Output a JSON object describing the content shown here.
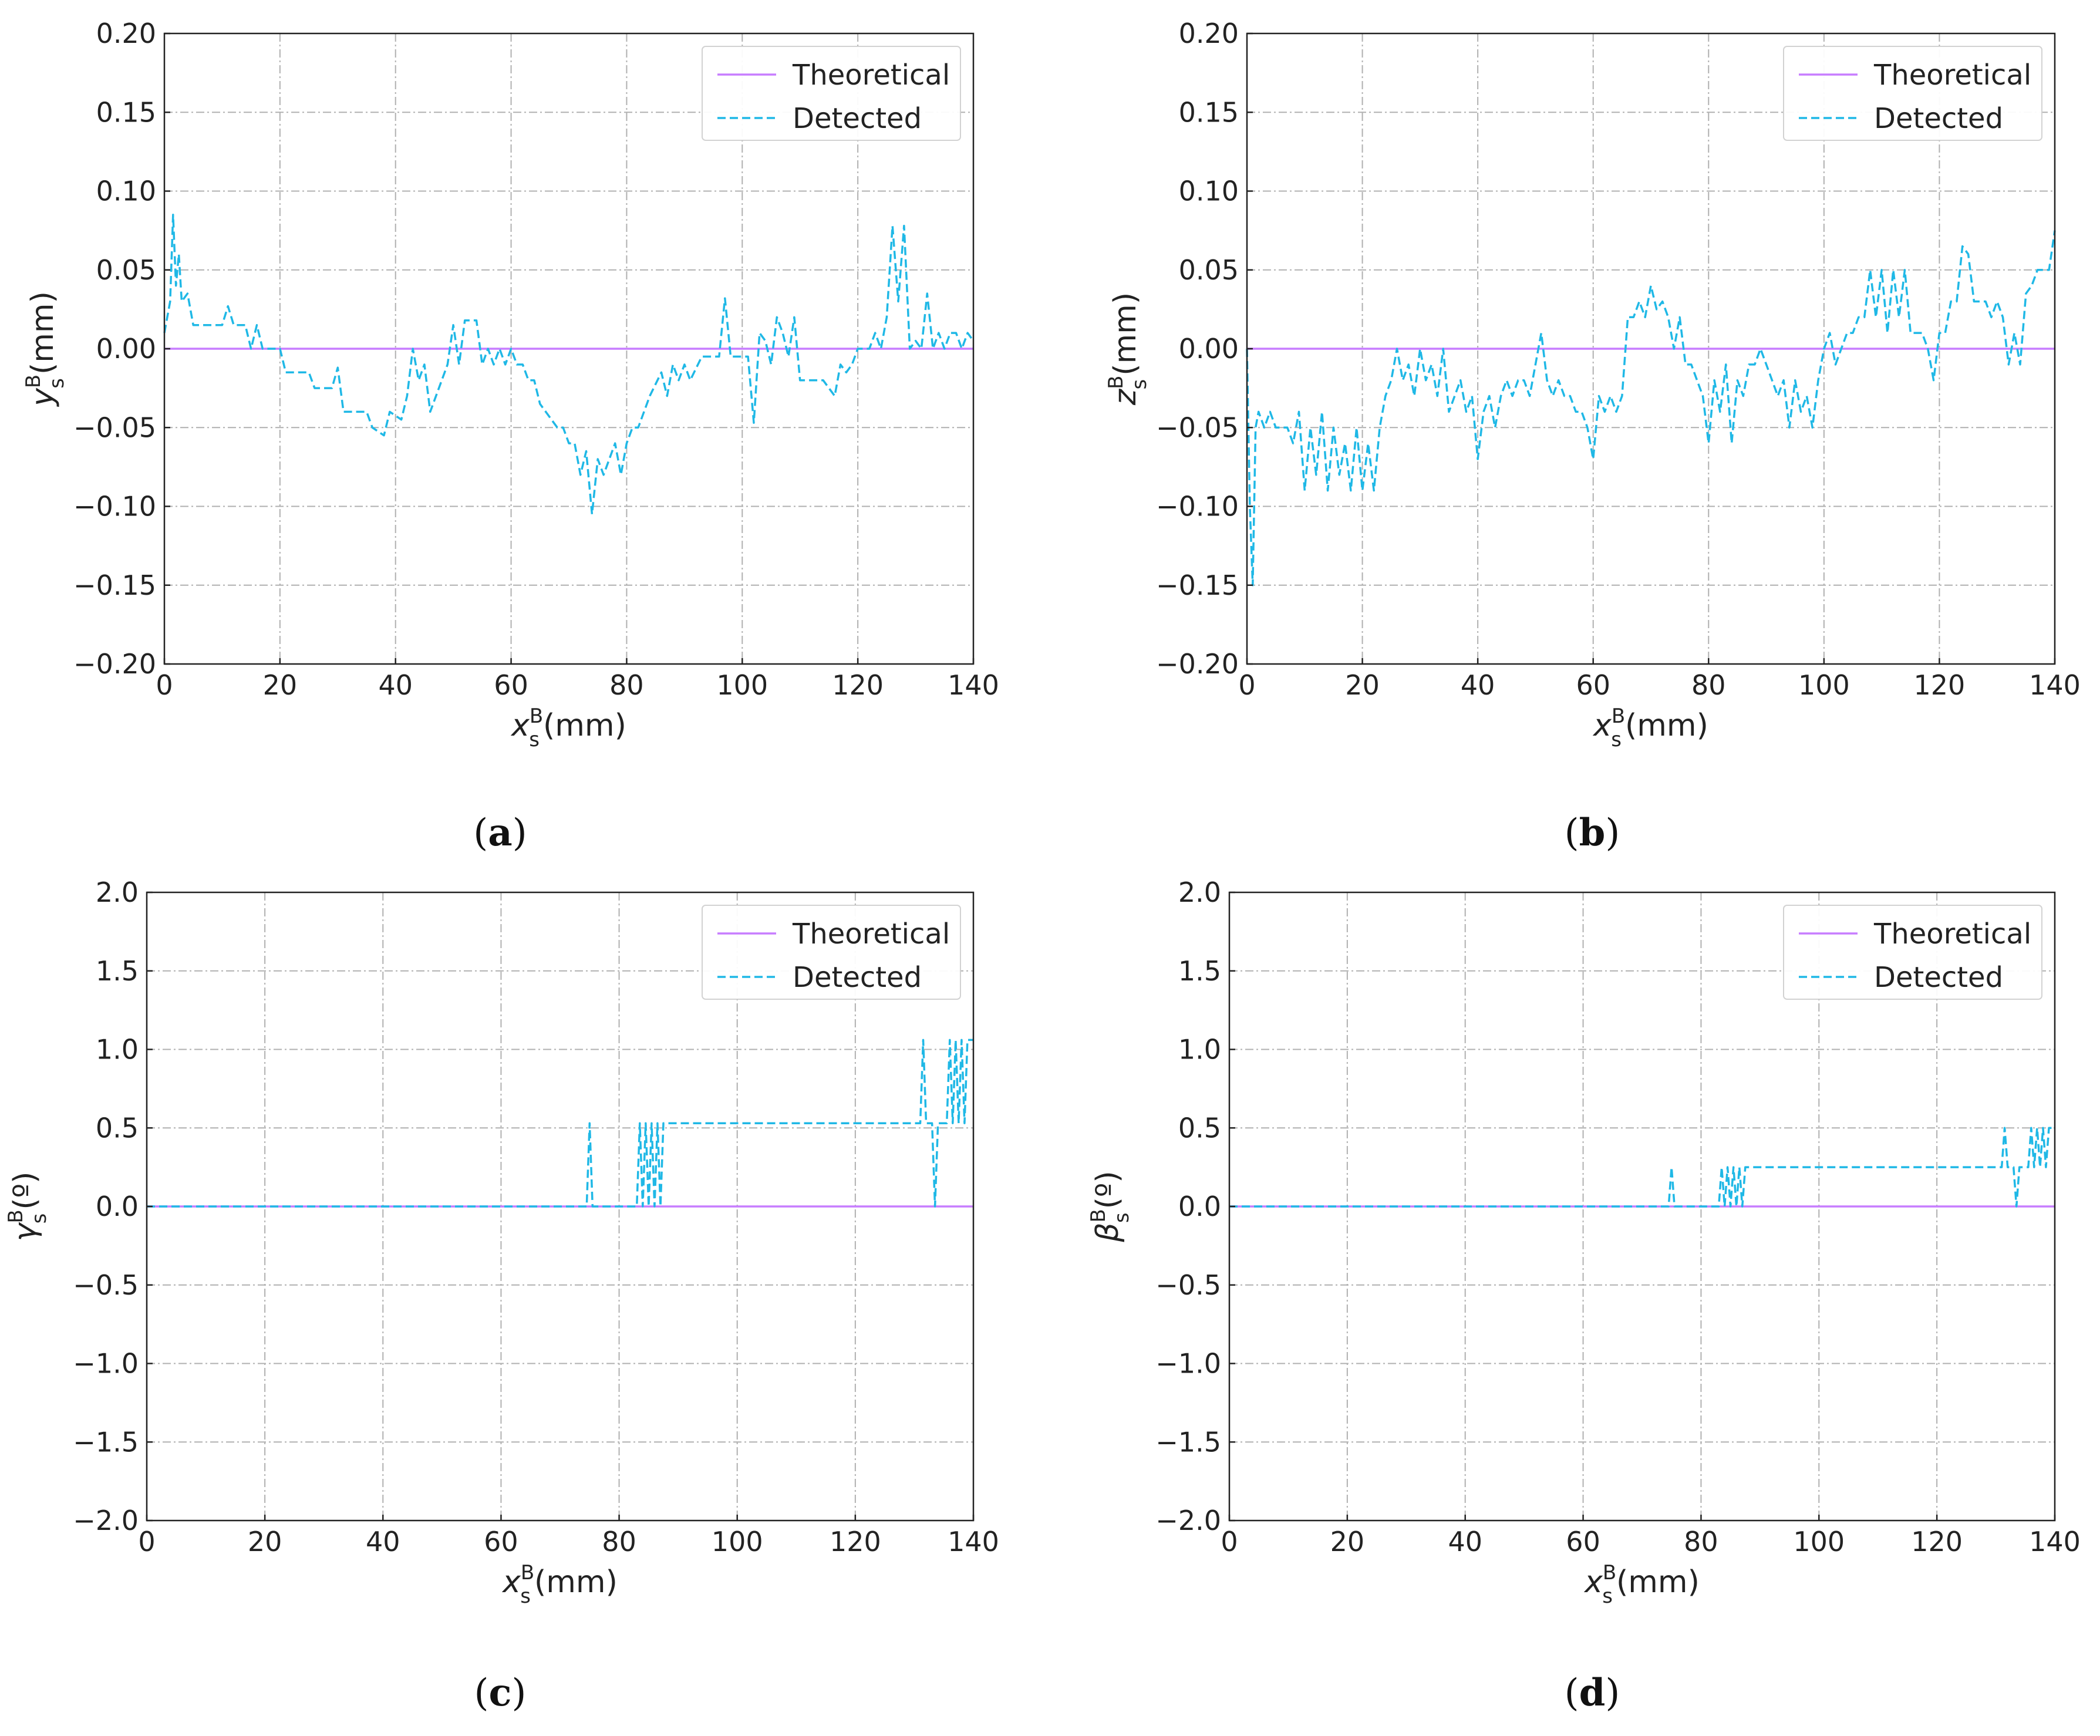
{
  "chart_data": [
    {
      "type": "line",
      "panel_label": "a",
      "xlabel": {
        "symbol": "x",
        "sup": "B",
        "sub": "s",
        "unit": "(mm)"
      },
      "ylabel": {
        "symbol": "y",
        "sup": "B",
        "sub": "s",
        "unit": "(mm)"
      },
      "xlim": [
        0,
        140
      ],
      "ylim": [
        -0.2,
        0.2
      ],
      "xticks": [
        0,
        20,
        40,
        60,
        80,
        100,
        120,
        140
      ],
      "xtick_labels": [
        "0",
        "20",
        "40",
        "60",
        "80",
        "100",
        "120",
        "140"
      ],
      "yticks": [
        -0.2,
        -0.15,
        -0.1,
        -0.05,
        0,
        0.05,
        0.1,
        0.15,
        0.2
      ],
      "ytick_labels": [
        "−0.20",
        "−0.15",
        "−0.10",
        "−0.05",
        "0.00",
        "0.05",
        "0.10",
        "0.15",
        "0.20"
      ],
      "grid": true,
      "legend": "top-right",
      "series": [
        {
          "name": "Theoretical",
          "color": "#c77dff",
          "style": "solid",
          "x": [
            0,
            140
          ],
          "y": [
            0,
            0
          ]
        },
        {
          "name": "Detected",
          "color": "#1fb8e6",
          "style": "dashed",
          "x": [
            0,
            1,
            1.5,
            2,
            2.5,
            3,
            4,
            5,
            7,
            10,
            11,
            12,
            14,
            15,
            16,
            17,
            18,
            19,
            20,
            21,
            25,
            26,
            29,
            30,
            31,
            35,
            36,
            38,
            39,
            41,
            42,
            43,
            44,
            45,
            46,
            48,
            49,
            50,
            51,
            52,
            54,
            55,
            56,
            57,
            58,
            59,
            60,
            61,
            62,
            63,
            64,
            65,
            66,
            68,
            69,
            70,
            71,
            72,
            73,
            74,
            75,
            76,
            78,
            79,
            80,
            81,
            82,
            84,
            86,
            87,
            88,
            89,
            90,
            91,
            93,
            94,
            96,
            97,
            98,
            99,
            100,
            101,
            102,
            103,
            104,
            105,
            106,
            107,
            108,
            109,
            110,
            111,
            113,
            114,
            116,
            117,
            118,
            119,
            120,
            121,
            122,
            123,
            124,
            125,
            126,
            127,
            128,
            129,
            130,
            131,
            132,
            133,
            134,
            135,
            136,
            137,
            138,
            139,
            140
          ],
          "y": [
            0.01,
            0.03,
            0.085,
            0.04,
            0.06,
            0.03,
            0.035,
            0.015,
            0.015,
            0.015,
            0.027,
            0.015,
            0.015,
            0.0,
            0.015,
            0.0,
            0.0,
            0.0,
            0.0,
            -0.015,
            -0.015,
            -0.025,
            -0.025,
            -0.012,
            -0.04,
            -0.04,
            -0.05,
            -0.055,
            -0.04,
            -0.045,
            -0.03,
            0.0,
            -0.02,
            -0.01,
            -0.04,
            -0.02,
            -0.01,
            0.015,
            -0.01,
            0.018,
            0.018,
            -0.01,
            0.0,
            -0.01,
            0.0,
            -0.01,
            0.0,
            -0.01,
            -0.01,
            -0.02,
            -0.02,
            -0.035,
            -0.04,
            -0.05,
            -0.05,
            -0.06,
            -0.06,
            -0.08,
            -0.065,
            -0.105,
            -0.07,
            -0.08,
            -0.06,
            -0.08,
            -0.06,
            -0.05,
            -0.05,
            -0.03,
            -0.015,
            -0.03,
            -0.01,
            -0.02,
            -0.01,
            -0.02,
            -0.005,
            -0.005,
            -0.005,
            0.032,
            -0.005,
            -0.005,
            -0.005,
            -0.005,
            -0.047,
            0.01,
            0.005,
            -0.01,
            0.02,
            0.01,
            -0.005,
            0.02,
            -0.02,
            -0.02,
            -0.02,
            -0.02,
            -0.03,
            -0.01,
            -0.015,
            -0.01,
            0.0,
            0.0,
            0.0,
            0.01,
            0.0,
            0.02,
            0.078,
            0.03,
            0.078,
            0.0,
            0.005,
            0.0,
            0.035,
            0.0,
            0.01,
            0.0,
            0.01,
            0.01,
            0.0,
            0.01,
            0.005
          ]
        }
      ]
    },
    {
      "type": "line",
      "panel_label": "b",
      "xlabel": {
        "symbol": "x",
        "sup": "B",
        "sub": "s",
        "unit": "(mm)"
      },
      "ylabel": {
        "symbol": "z",
        "sup": "B",
        "sub": "s",
        "unit": "(mm)"
      },
      "xlim": [
        0,
        140
      ],
      "ylim": [
        -0.2,
        0.2
      ],
      "xticks": [
        0,
        20,
        40,
        60,
        80,
        100,
        120,
        140
      ],
      "xtick_labels": [
        "0",
        "20",
        "40",
        "60",
        "80",
        "100",
        "120",
        "140"
      ],
      "yticks": [
        -0.2,
        -0.15,
        -0.1,
        -0.05,
        0,
        0.05,
        0.1,
        0.15,
        0.2
      ],
      "ytick_labels": [
        "−0.20",
        "−0.15",
        "−0.10",
        "−0.05",
        "0.00",
        "0.05",
        "0.10",
        "0.15",
        "0.20"
      ],
      "grid": true,
      "legend": "top-right",
      "series": [
        {
          "name": "Theoretical",
          "color": "#c77dff",
          "style": "solid",
          "x": [
            0,
            140
          ],
          "y": [
            0,
            0
          ]
        },
        {
          "name": "Detected",
          "color": "#1fb8e6",
          "style": "dashed",
          "x": [
            0,
            0.5,
            1,
            1.5,
            2,
            3,
            4,
            5,
            6,
            7,
            8,
            9,
            10,
            11,
            12,
            13,
            14,
            15,
            16,
            17,
            18,
            19,
            20,
            21,
            22,
            23,
            24,
            25,
            26,
            27,
            28,
            29,
            30,
            31,
            32,
            33,
            34,
            35,
            36,
            37,
            38,
            39,
            40,
            41,
            42,
            43,
            44,
            45,
            46,
            47,
            48,
            49,
            50,
            51,
            52,
            53,
            54,
            55,
            56,
            57,
            58,
            59,
            60,
            61,
            62,
            63,
            64,
            65,
            66,
            67,
            68,
            69,
            70,
            71,
            72,
            73,
            74,
            75,
            76,
            77,
            78,
            79,
            80,
            81,
            82,
            83,
            84,
            85,
            86,
            87,
            88,
            89,
            90,
            91,
            92,
            93,
            94,
            95,
            96,
            97,
            98,
            99,
            100,
            101,
            102,
            103,
            104,
            105,
            106,
            107,
            108,
            109,
            110,
            111,
            112,
            113,
            114,
            115,
            116,
            117,
            118,
            119,
            120,
            121,
            122,
            123,
            124,
            125,
            126,
            127,
            128,
            129,
            130,
            131,
            132,
            133,
            134,
            135,
            136,
            137,
            138,
            139,
            140
          ],
          "y": [
            0.0,
            -0.1,
            -0.15,
            -0.05,
            -0.04,
            -0.05,
            -0.04,
            -0.05,
            -0.05,
            -0.05,
            -0.06,
            -0.04,
            -0.09,
            -0.05,
            -0.08,
            -0.04,
            -0.09,
            -0.05,
            -0.08,
            -0.06,
            -0.09,
            -0.05,
            -0.09,
            -0.06,
            -0.09,
            -0.05,
            -0.03,
            -0.02,
            0.0,
            -0.02,
            -0.01,
            -0.03,
            0.0,
            -0.02,
            -0.01,
            -0.03,
            0.0,
            -0.04,
            -0.03,
            -0.02,
            -0.04,
            -0.03,
            -0.07,
            -0.04,
            -0.03,
            -0.05,
            -0.03,
            -0.02,
            -0.03,
            -0.02,
            -0.02,
            -0.03,
            -0.01,
            0.01,
            -0.02,
            -0.03,
            -0.02,
            -0.03,
            -0.03,
            -0.04,
            -0.04,
            -0.05,
            -0.07,
            -0.03,
            -0.04,
            -0.03,
            -0.04,
            -0.03,
            0.02,
            0.02,
            0.03,
            0.02,
            0.04,
            0.025,
            0.03,
            0.02,
            0.0,
            0.02,
            -0.01,
            -0.01,
            -0.02,
            -0.03,
            -0.06,
            -0.02,
            -0.04,
            -0.01,
            -0.06,
            -0.02,
            -0.03,
            -0.01,
            -0.01,
            0.0,
            -0.01,
            -0.02,
            -0.03,
            -0.02,
            -0.05,
            -0.02,
            -0.04,
            -0.03,
            -0.05,
            -0.02,
            0.0,
            0.01,
            -0.01,
            0.0,
            0.01,
            0.01,
            0.02,
            0.02,
            0.05,
            0.02,
            0.05,
            0.01,
            0.05,
            0.02,
            0.05,
            0.01,
            0.01,
            0.01,
            0.0,
            -0.02,
            0.01,
            0.01,
            0.03,
            0.03,
            0.065,
            0.06,
            0.03,
            0.03,
            0.03,
            0.02,
            0.03,
            0.02,
            -0.01,
            0.01,
            -0.01,
            0.035,
            0.04,
            0.05,
            0.05,
            0.05,
            0.075
          ]
        }
      ]
    },
    {
      "type": "line",
      "panel_label": "c",
      "xlabel": {
        "symbol": "x",
        "sup": "B",
        "sub": "s",
        "unit": "(mm)"
      },
      "ylabel": {
        "symbol": "γ",
        "sup": "B",
        "sub": "s",
        "unit": "(º)"
      },
      "xlim": [
        0,
        140
      ],
      "ylim": [
        -2.0,
        2.0
      ],
      "xticks": [
        0,
        20,
        40,
        60,
        80,
        100,
        120,
        140
      ],
      "xtick_labels": [
        "0",
        "20",
        "40",
        "60",
        "80",
        "100",
        "120",
        "140"
      ],
      "yticks": [
        -2.0,
        -1.5,
        -1.0,
        -0.5,
        0.0,
        0.5,
        1.0,
        1.5,
        2.0
      ],
      "ytick_labels": [
        "−2.0",
        "−1.5",
        "−1.0",
        "−0.5",
        "0.0",
        "0.5",
        "1.0",
        "1.5",
        "2.0"
      ],
      "grid": true,
      "legend": "top-right",
      "series": [
        {
          "name": "Theoretical",
          "color": "#c77dff",
          "style": "solid",
          "x": [
            0,
            140
          ],
          "y": [
            0,
            0
          ]
        },
        {
          "name": "Detected",
          "color": "#1fb8e6",
          "style": "dashed",
          "x": [
            0,
            74.5,
            75,
            75.5,
            83,
            83.5,
            84,
            84.5,
            85,
            85.5,
            86,
            86.5,
            87,
            87.5,
            88,
            88.5,
            131,
            131.5,
            132,
            133,
            133.5,
            134,
            135.5,
            136,
            136.5,
            137,
            137.5,
            138,
            138.5,
            139,
            140
          ],
          "y": [
            0.0,
            0.0,
            0.53,
            0.0,
            0.0,
            0.53,
            0.0,
            0.53,
            0.0,
            0.53,
            0.0,
            0.53,
            0.0,
            0.53,
            0.53,
            0.53,
            0.53,
            1.06,
            0.53,
            0.53,
            0.0,
            0.53,
            0.53,
            1.06,
            0.53,
            1.06,
            0.53,
            1.06,
            0.53,
            1.06,
            1.06
          ]
        }
      ]
    },
    {
      "type": "line",
      "panel_label": "d",
      "xlabel": {
        "symbol": "x",
        "sup": "B",
        "sub": "s",
        "unit": "(mm)"
      },
      "ylabel": {
        "symbol": "β",
        "sup": "B",
        "sub": "s",
        "unit": "(º)"
      },
      "xlim": [
        0,
        140
      ],
      "ylim": [
        -2.0,
        2.0
      ],
      "xticks": [
        0,
        20,
        40,
        60,
        80,
        100,
        120,
        140
      ],
      "xtick_labels": [
        "0",
        "20",
        "40",
        "60",
        "80",
        "100",
        "120",
        "140"
      ],
      "yticks": [
        -2.0,
        -1.5,
        -1.0,
        -0.5,
        0.0,
        0.5,
        1.0,
        1.5,
        2.0
      ],
      "ytick_labels": [
        "−2.0",
        "−1.5",
        "−1.0",
        "−0.5",
        "0.0",
        "0.5",
        "1.0",
        "1.5",
        "2.0"
      ],
      "grid": true,
      "legend": "top-right",
      "series": [
        {
          "name": "Theoretical",
          "color": "#c77dff",
          "style": "solid",
          "x": [
            0,
            140
          ],
          "y": [
            0,
            0
          ]
        },
        {
          "name": "Detected",
          "color": "#1fb8e6",
          "style": "dashed",
          "x": [
            0,
            74.5,
            75,
            75.5,
            83,
            83.5,
            84,
            84.5,
            85,
            85.5,
            86,
            86.5,
            87,
            87.5,
            88,
            88.5,
            131,
            131.5,
            132,
            133,
            133.5,
            134,
            135.5,
            136,
            136.5,
            137,
            137.5,
            138,
            138.5,
            139,
            140
          ],
          "y": [
            0.0,
            0.0,
            0.25,
            0.0,
            0.0,
            0.25,
            0.0,
            0.25,
            0.0,
            0.25,
            0.0,
            0.25,
            0.0,
            0.25,
            0.25,
            0.25,
            0.25,
            0.5,
            0.25,
            0.25,
            0.0,
            0.25,
            0.25,
            0.5,
            0.25,
            0.5,
            0.25,
            0.5,
            0.25,
            0.5,
            0.5
          ]
        }
      ]
    }
  ]
}
